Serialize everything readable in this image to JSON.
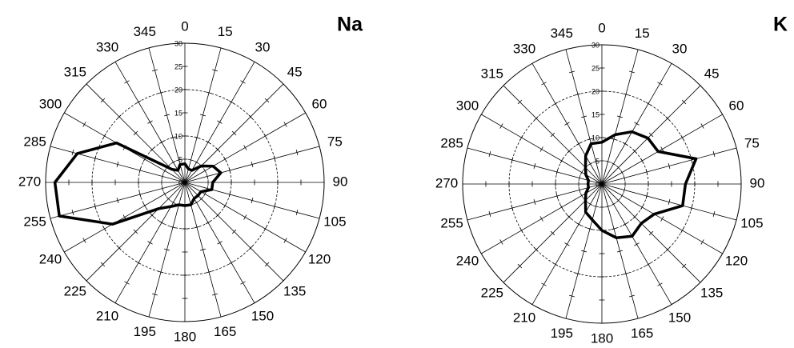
{
  "chart_data": [
    {
      "type": "radar",
      "title": "Na",
      "categories": [
        "0",
        "15",
        "30",
        "45",
        "60",
        "75",
        "90",
        "105",
        "120",
        "135",
        "150",
        "165",
        "180",
        "195",
        "210",
        "225",
        "240",
        "255",
        "270",
        "285",
        "300",
        "315",
        "330",
        "345"
      ],
      "values": [
        4,
        3,
        3,
        5,
        7,
        8,
        6,
        6,
        4,
        4,
        4,
        5,
        5,
        5,
        6,
        8,
        18,
        28,
        28,
        24,
        17,
        4,
        3,
        4
      ],
      "color": "#000000",
      "rlim": [
        0,
        30
      ],
      "rticks": [
        0,
        5,
        10,
        15,
        20,
        25,
        30
      ]
    },
    {
      "type": "radar",
      "title": "K",
      "categories": [
        "0",
        "15",
        "30",
        "45",
        "60",
        "75",
        "90",
        "105",
        "120",
        "135",
        "150",
        "165",
        "180",
        "195",
        "210",
        "225",
        "240",
        "255",
        "270",
        "285",
        "300",
        "315",
        "330",
        "345"
      ],
      "values": [
        9,
        11,
        13,
        14,
        14,
        21,
        18,
        18,
        13,
        12,
        13,
        12,
        10,
        8,
        7,
        5,
        4,
        3,
        3,
        3,
        4,
        5,
        7,
        9
      ],
      "color": "#000000",
      "rlim": [
        0,
        30
      ],
      "rticks": [
        0,
        5,
        10,
        15,
        20,
        25,
        30
      ]
    }
  ]
}
